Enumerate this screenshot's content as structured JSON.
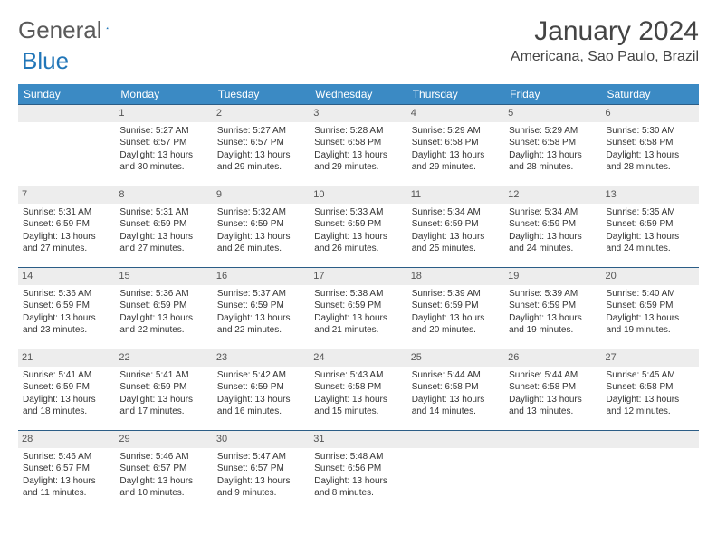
{
  "brand": {
    "text1": "General",
    "text2": "Blue",
    "logo_color": "#2176b8"
  },
  "header": {
    "month_title": "January 2024",
    "location": "Americana, Sao Paulo, Brazil"
  },
  "colors": {
    "header_bg": "#3b8ac4",
    "row_border": "#2b5d86",
    "daynum_bg": "#ededed",
    "text": "#333333"
  },
  "weekdays": [
    "Sunday",
    "Monday",
    "Tuesday",
    "Wednesday",
    "Thursday",
    "Friday",
    "Saturday"
  ],
  "weeks": [
    [
      null,
      {
        "n": "1",
        "sr": "Sunrise: 5:27 AM",
        "ss": "Sunset: 6:57 PM",
        "dl": "Daylight: 13 hours and 30 minutes."
      },
      {
        "n": "2",
        "sr": "Sunrise: 5:27 AM",
        "ss": "Sunset: 6:57 PM",
        "dl": "Daylight: 13 hours and 29 minutes."
      },
      {
        "n": "3",
        "sr": "Sunrise: 5:28 AM",
        "ss": "Sunset: 6:58 PM",
        "dl": "Daylight: 13 hours and 29 minutes."
      },
      {
        "n": "4",
        "sr": "Sunrise: 5:29 AM",
        "ss": "Sunset: 6:58 PM",
        "dl": "Daylight: 13 hours and 29 minutes."
      },
      {
        "n": "5",
        "sr": "Sunrise: 5:29 AM",
        "ss": "Sunset: 6:58 PM",
        "dl": "Daylight: 13 hours and 28 minutes."
      },
      {
        "n": "6",
        "sr": "Sunrise: 5:30 AM",
        "ss": "Sunset: 6:58 PM",
        "dl": "Daylight: 13 hours and 28 minutes."
      }
    ],
    [
      {
        "n": "7",
        "sr": "Sunrise: 5:31 AM",
        "ss": "Sunset: 6:59 PM",
        "dl": "Daylight: 13 hours and 27 minutes."
      },
      {
        "n": "8",
        "sr": "Sunrise: 5:31 AM",
        "ss": "Sunset: 6:59 PM",
        "dl": "Daylight: 13 hours and 27 minutes."
      },
      {
        "n": "9",
        "sr": "Sunrise: 5:32 AM",
        "ss": "Sunset: 6:59 PM",
        "dl": "Daylight: 13 hours and 26 minutes."
      },
      {
        "n": "10",
        "sr": "Sunrise: 5:33 AM",
        "ss": "Sunset: 6:59 PM",
        "dl": "Daylight: 13 hours and 26 minutes."
      },
      {
        "n": "11",
        "sr": "Sunrise: 5:34 AM",
        "ss": "Sunset: 6:59 PM",
        "dl": "Daylight: 13 hours and 25 minutes."
      },
      {
        "n": "12",
        "sr": "Sunrise: 5:34 AM",
        "ss": "Sunset: 6:59 PM",
        "dl": "Daylight: 13 hours and 24 minutes."
      },
      {
        "n": "13",
        "sr": "Sunrise: 5:35 AM",
        "ss": "Sunset: 6:59 PM",
        "dl": "Daylight: 13 hours and 24 minutes."
      }
    ],
    [
      {
        "n": "14",
        "sr": "Sunrise: 5:36 AM",
        "ss": "Sunset: 6:59 PM",
        "dl": "Daylight: 13 hours and 23 minutes."
      },
      {
        "n": "15",
        "sr": "Sunrise: 5:36 AM",
        "ss": "Sunset: 6:59 PM",
        "dl": "Daylight: 13 hours and 22 minutes."
      },
      {
        "n": "16",
        "sr": "Sunrise: 5:37 AM",
        "ss": "Sunset: 6:59 PM",
        "dl": "Daylight: 13 hours and 22 minutes."
      },
      {
        "n": "17",
        "sr": "Sunrise: 5:38 AM",
        "ss": "Sunset: 6:59 PM",
        "dl": "Daylight: 13 hours and 21 minutes."
      },
      {
        "n": "18",
        "sr": "Sunrise: 5:39 AM",
        "ss": "Sunset: 6:59 PM",
        "dl": "Daylight: 13 hours and 20 minutes."
      },
      {
        "n": "19",
        "sr": "Sunrise: 5:39 AM",
        "ss": "Sunset: 6:59 PM",
        "dl": "Daylight: 13 hours and 19 minutes."
      },
      {
        "n": "20",
        "sr": "Sunrise: 5:40 AM",
        "ss": "Sunset: 6:59 PM",
        "dl": "Daylight: 13 hours and 19 minutes."
      }
    ],
    [
      {
        "n": "21",
        "sr": "Sunrise: 5:41 AM",
        "ss": "Sunset: 6:59 PM",
        "dl": "Daylight: 13 hours and 18 minutes."
      },
      {
        "n": "22",
        "sr": "Sunrise: 5:41 AM",
        "ss": "Sunset: 6:59 PM",
        "dl": "Daylight: 13 hours and 17 minutes."
      },
      {
        "n": "23",
        "sr": "Sunrise: 5:42 AM",
        "ss": "Sunset: 6:59 PM",
        "dl": "Daylight: 13 hours and 16 minutes."
      },
      {
        "n": "24",
        "sr": "Sunrise: 5:43 AM",
        "ss": "Sunset: 6:58 PM",
        "dl": "Daylight: 13 hours and 15 minutes."
      },
      {
        "n": "25",
        "sr": "Sunrise: 5:44 AM",
        "ss": "Sunset: 6:58 PM",
        "dl": "Daylight: 13 hours and 14 minutes."
      },
      {
        "n": "26",
        "sr": "Sunrise: 5:44 AM",
        "ss": "Sunset: 6:58 PM",
        "dl": "Daylight: 13 hours and 13 minutes."
      },
      {
        "n": "27",
        "sr": "Sunrise: 5:45 AM",
        "ss": "Sunset: 6:58 PM",
        "dl": "Daylight: 13 hours and 12 minutes."
      }
    ],
    [
      {
        "n": "28",
        "sr": "Sunrise: 5:46 AM",
        "ss": "Sunset: 6:57 PM",
        "dl": "Daylight: 13 hours and 11 minutes."
      },
      {
        "n": "29",
        "sr": "Sunrise: 5:46 AM",
        "ss": "Sunset: 6:57 PM",
        "dl": "Daylight: 13 hours and 10 minutes."
      },
      {
        "n": "30",
        "sr": "Sunrise: 5:47 AM",
        "ss": "Sunset: 6:57 PM",
        "dl": "Daylight: 13 hours and 9 minutes."
      },
      {
        "n": "31",
        "sr": "Sunrise: 5:48 AM",
        "ss": "Sunset: 6:56 PM",
        "dl": "Daylight: 13 hours and 8 minutes."
      },
      null,
      null,
      null
    ]
  ]
}
